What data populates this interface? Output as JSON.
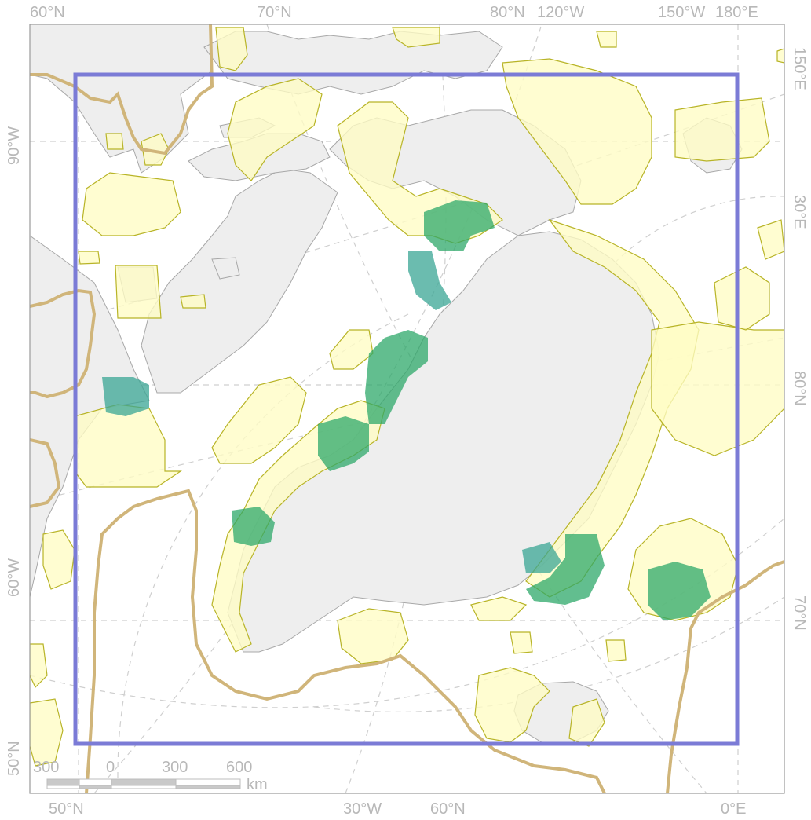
{
  "map": {
    "colors": {
      "land": "#eeeeee",
      "land_outline": "#a8a8a8",
      "sea": "#ffffff",
      "habitat_fill": "#fffcc4",
      "habitat_outline": "#b8b427",
      "hotspot": "#2ea86a",
      "hotspot_shallow": "#3aa594",
      "study_box": "#7b7bd6",
      "boundary": "#d0b57a",
      "graticule": "#c8c8c8",
      "label": "#b8b8b8"
    },
    "graticule_labels": {
      "top": [
        "60°N",
        "70°N",
        "80°N",
        "120°W",
        "150°W",
        "180°E"
      ],
      "bottom": [
        "50°N",
        "30°W",
        "60°N",
        "0°E"
      ],
      "left": [
        "90°W",
        "60°W",
        "50°N"
      ],
      "right": [
        "150°E",
        "30°E",
        "80°N",
        "70°N"
      ]
    },
    "scale_bar": {
      "ticks": [
        "300",
        "0",
        "300",
        "600"
      ],
      "unit": "km"
    }
  }
}
